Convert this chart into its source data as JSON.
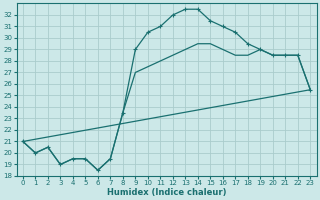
{
  "xlabel": "Humidex (Indice chaleur)",
  "ylabel": "",
  "bg_color": "#cce8e8",
  "grid_color": "#aacccc",
  "line_color": "#1a7070",
  "xlim": [
    -0.5,
    23.5
  ],
  "ylim": [
    18,
    33
  ],
  "xticks": [
    0,
    1,
    2,
    3,
    4,
    5,
    6,
    7,
    8,
    9,
    10,
    11,
    12,
    13,
    14,
    15,
    16,
    17,
    18,
    19,
    20,
    21,
    22,
    23
  ],
  "yticks": [
    18,
    19,
    20,
    21,
    22,
    23,
    24,
    25,
    26,
    27,
    28,
    29,
    30,
    31,
    32
  ],
  "line1_x": [
    0,
    1,
    2,
    3,
    4,
    5,
    6,
    7,
    8,
    9,
    10,
    11,
    12,
    13,
    14,
    15,
    16,
    17,
    18,
    19,
    20,
    21,
    22,
    23
  ],
  "line1_y": [
    21.0,
    20.0,
    20.5,
    19.0,
    19.5,
    19.5,
    18.5,
    19.5,
    23.5,
    29.0,
    30.5,
    31.0,
    32.0,
    32.5,
    32.5,
    31.5,
    31.0,
    30.5,
    29.5,
    29.0,
    28.5,
    28.5,
    28.5,
    25.5
  ],
  "line2_x": [
    0,
    1,
    2,
    3,
    4,
    5,
    6,
    7,
    8,
    9,
    10,
    11,
    12,
    13,
    14,
    15,
    16,
    17,
    18,
    19,
    20,
    21,
    22,
    23
  ],
  "line2_y": [
    21.0,
    20.0,
    20.5,
    19.0,
    19.5,
    19.5,
    18.5,
    19.5,
    23.5,
    27.0,
    27.5,
    28.0,
    28.5,
    29.0,
    29.5,
    29.5,
    29.0,
    28.5,
    28.5,
    29.0,
    28.5,
    28.5,
    28.5,
    25.5
  ],
  "line3_x": [
    0,
    23
  ],
  "line3_y": [
    21.0,
    25.5
  ],
  "xlabel_fontsize": 6,
  "tick_fontsize": 5
}
